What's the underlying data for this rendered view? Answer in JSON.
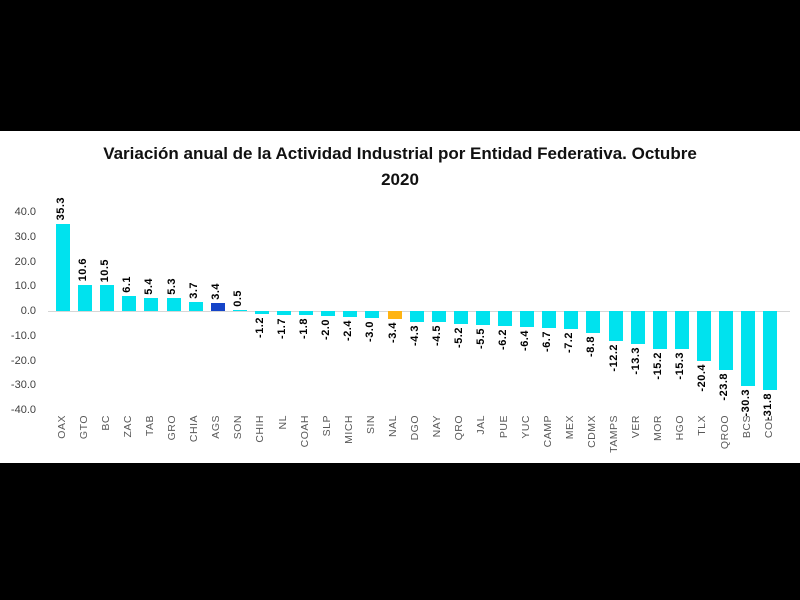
{
  "frame": {
    "background_color": "#000000",
    "panel_color": "#ffffff"
  },
  "title_lines": [
    "Variación anual de la Actividad Industrial por Entidad Federativa. Octubre",
    "2020"
  ],
  "chart_data": {
    "type": "bar",
    "title": "Variación anual de la Actividad Industrial por Entidad Federativa. Octubre 2020",
    "xlabel": "",
    "ylabel": "",
    "ylim": [
      -40,
      40
    ],
    "ytick_labels": [
      "40.0",
      "30.0",
      "20.0",
      "10.0",
      "0.0",
      "-10.0",
      "-20.0",
      "-30.0",
      "-40.0"
    ],
    "ytick_values": [
      40,
      30,
      20,
      10,
      0,
      -10,
      -20,
      -30,
      -40
    ],
    "grid": "zero-line-only",
    "legend": "none",
    "value_labels": "rotated-90-bold-one-decimal",
    "category_labels": "rotated-90-gray",
    "categories": [
      "OAX",
      "GTO",
      "BC",
      "ZAC",
      "TAB",
      "GRO",
      "CHIA",
      "AGS",
      "SON",
      "CHIH",
      "NL",
      "COAH",
      "SLP",
      "MICH",
      "SIN",
      "NAL",
      "DGO",
      "NAY",
      "QRO",
      "JAL",
      "PUE",
      "YUC",
      "CAMP",
      "MEX",
      "CDMX",
      "TAMPS",
      "VER",
      "MOR",
      "HGO",
      "TLX",
      "QROO",
      "BCS",
      "COL"
    ],
    "values": [
      35.3,
      10.6,
      10.5,
      6.1,
      5.4,
      5.3,
      3.7,
      3.4,
      0.5,
      -1.2,
      -1.7,
      -1.8,
      -2.0,
      -2.4,
      -3.0,
      -3.4,
      -4.3,
      -4.5,
      -5.2,
      -5.5,
      -6.2,
      -6.4,
      -6.7,
      -7.2,
      -8.8,
      -12.2,
      -13.3,
      -15.2,
      -15.3,
      -20.4,
      -23.8,
      -30.3,
      -31.8
    ],
    "highlighted_bars": {
      "AGS": "dark-blue",
      "NAL": "orange"
    },
    "colors": {
      "bar_default": "#00E2EE",
      "bar_ags": "#1544C8",
      "bar_nal": "#FFB412",
      "value_label": "#000000",
      "category_label": "#595959",
      "axis_tick_label": "#404040",
      "zero_line": "#D6D6D6"
    }
  }
}
